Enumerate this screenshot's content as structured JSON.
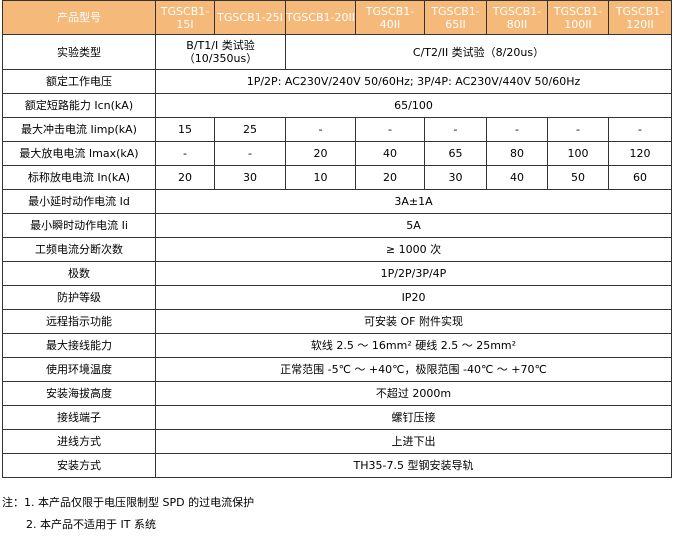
{
  "header": {
    "label": "产品型号",
    "models": [
      "TGSCB1-15I",
      "TGSCB1-25I",
      "TGSCB1-20II",
      "TGSCB1-40II",
      "TGSCB1-65II",
      "TGSCB1-80II",
      "TGSCB1-100II",
      "TGSCB1-120II"
    ]
  },
  "test_type": {
    "label": "实验类型",
    "class1": "B/T1/I 类试验（10/350us）",
    "class2": "C/T2/II 类试验（8/20us）"
  },
  "rated_voltage": {
    "label": "额定工作电压",
    "value": "1P/2P: AC230V/240V 50/60Hz; 3P/4P: AC230V/440V 50/60Hz"
  },
  "short_circuit": {
    "label": "额定短路能力 Icn(kA)",
    "value": "65/100"
  },
  "iimp": {
    "label": "最大冲击电流 Iimp(kA)",
    "values": [
      "15",
      "25",
      "-",
      "-",
      "-",
      "-",
      "-",
      "-"
    ]
  },
  "imax": {
    "label": "最大放电电流 Imax(kA)",
    "values": [
      "-",
      "-",
      "20",
      "40",
      "65",
      "80",
      "100",
      "120"
    ]
  },
  "in": {
    "label": "标称放电电流 In(kA)",
    "values": [
      "20",
      "30",
      "10",
      "20",
      "30",
      "40",
      "50",
      "60"
    ]
  },
  "rows": [
    {
      "label": "最小延时动作电流 Id",
      "value": "3A±1A"
    },
    {
      "label": "最小瞬时动作电流 Ii",
      "value": "5A"
    },
    {
      "label": "工频电流分断次数",
      "value": "≥ 1000 次"
    },
    {
      "label": "极数",
      "value": "1P/2P/3P/4P"
    },
    {
      "label": "防护等级",
      "value": "IP20"
    },
    {
      "label": "远程指示功能",
      "value": "可安装 OF 附件实现"
    },
    {
      "label": "最大接线能力",
      "value": "软线 2.5 ～ 16mm² 硬线 2.5 ～ 25mm²"
    },
    {
      "label": "使用环境温度",
      "value": "正常范围 -5℃ ～ +40℃，极限范围 -40℃ ～ +70℃"
    },
    {
      "label": "安装海拔高度",
      "value": "不超过 2000m"
    },
    {
      "label": "接线端子",
      "value": "螺钉压接"
    },
    {
      "label": "进线方式",
      "value": "上进下出"
    },
    {
      "label": "安装方式",
      "value": "TH35-7.5 型钢安装导轨"
    }
  ],
  "notes": [
    "注：1. 本产品仅限于电压限制型 SPD 的过电流保护",
    "2. 本产品不适用于 IT 系统"
  ],
  "colors": {
    "header_bg": "#F5B97A",
    "header_text": "#FFFFFF"
  }
}
